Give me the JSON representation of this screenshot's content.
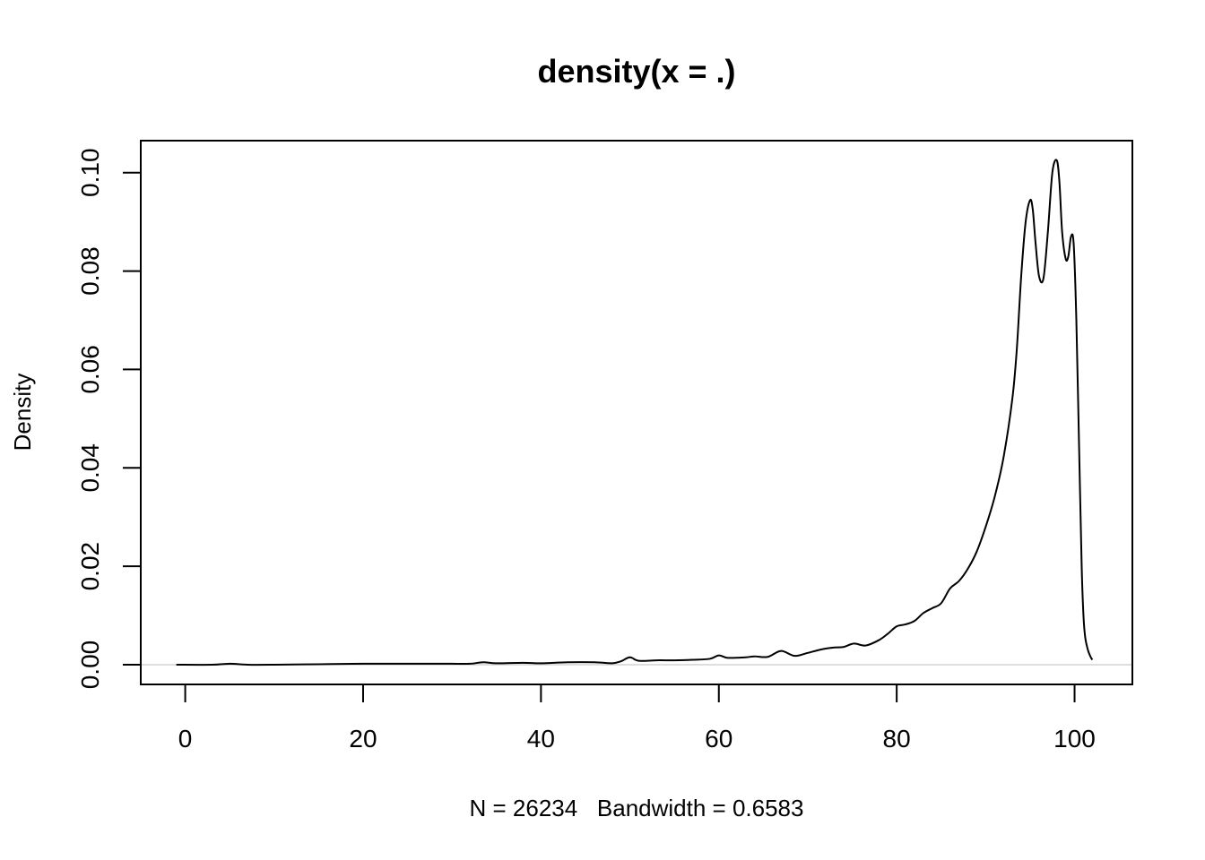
{
  "chart_data": {
    "type": "line",
    "title": "density(x = .)",
    "xlabel": "N = 26234   Bandwidth = 0.6583",
    "ylabel": "Density",
    "xlim": [
      -5,
      106.5
    ],
    "ylim": [
      -0.004,
      0.1065
    ],
    "x_ticks": [
      0,
      20,
      40,
      60,
      80,
      100
    ],
    "y_ticks": [
      0.0,
      0.02,
      0.04,
      0.06,
      0.08,
      0.1
    ],
    "x_tick_labels": [
      "0",
      "20",
      "40",
      "60",
      "80",
      "100"
    ],
    "y_tick_labels": [
      "0.00",
      "0.02",
      "0.04",
      "0.06",
      "0.08",
      "0.10"
    ],
    "baseline": 0,
    "grid": false,
    "series": [
      {
        "name": "density",
        "x": [
          -1,
          3,
          5,
          7,
          10,
          15,
          20,
          25,
          30,
          32,
          33.5,
          35,
          38,
          40,
          43,
          46,
          48,
          49,
          50,
          51,
          53,
          55,
          57,
          59,
          60,
          61,
          63,
          64,
          65.5,
          67,
          68.5,
          70,
          71.5,
          73,
          74,
          75.2,
          76.5,
          78,
          79,
          80,
          81,
          82,
          83,
          84,
          85,
          86,
          87,
          88,
          89,
          90,
          91,
          92,
          93,
          93.5,
          94,
          94.5,
          95,
          95.3,
          95.6,
          96,
          96.5,
          97,
          97.5,
          98,
          98.3,
          98.6,
          99,
          99.3,
          99.6,
          99.9,
          100.2,
          100.5,
          100.8,
          101,
          101.2,
          101.5,
          101.8,
          102
        ],
        "y": [
          0.0,
          0.0,
          0.0002,
          0.0,
          0.0,
          0.0001,
          0.0002,
          0.0002,
          0.0002,
          0.0002,
          0.0005,
          0.0003,
          0.0004,
          0.0003,
          0.0005,
          0.0005,
          0.0003,
          0.0007,
          0.0015,
          0.0008,
          0.0009,
          0.0009,
          0.001,
          0.0012,
          0.0019,
          0.0014,
          0.0015,
          0.0017,
          0.0016,
          0.0028,
          0.0018,
          0.0024,
          0.0031,
          0.0035,
          0.0036,
          0.0043,
          0.0039,
          0.005,
          0.0063,
          0.0078,
          0.0082,
          0.0089,
          0.0105,
          0.0115,
          0.0125,
          0.0155,
          0.017,
          0.0195,
          0.023,
          0.028,
          0.034,
          0.042,
          0.054,
          0.064,
          0.079,
          0.09,
          0.0944,
          0.0925,
          0.086,
          0.079,
          0.0785,
          0.088,
          0.1,
          0.1025,
          0.098,
          0.088,
          0.0825,
          0.083,
          0.087,
          0.0855,
          0.07,
          0.045,
          0.02,
          0.01,
          0.0055,
          0.003,
          0.0016,
          0.001
        ]
      }
    ]
  }
}
